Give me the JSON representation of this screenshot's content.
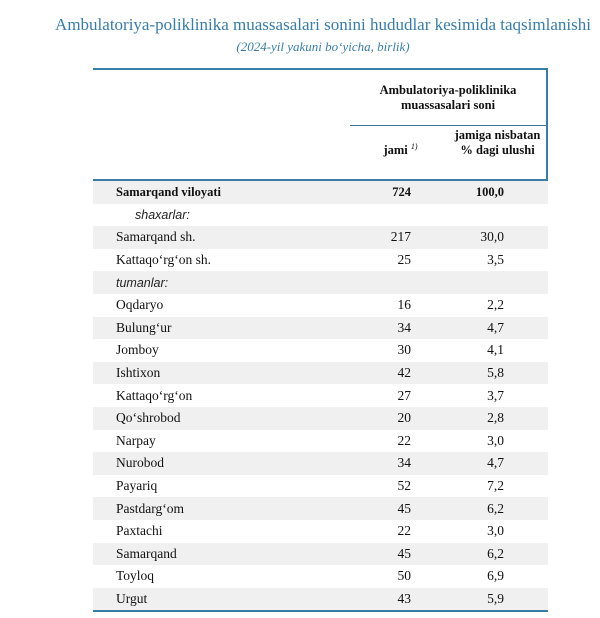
{
  "title": "Ambulatoriya-poliklinika muassasalari sonini hududlar kesimida taqsimlanishi",
  "subtitle": "(2024-yil yakuni bo‘yicha, birlik)",
  "header": {
    "group": "Ambulatoriya-poliklinika muassasalari soni",
    "col_total": "jami",
    "col_total_note": "1)",
    "col_share": "jamiga nisbatan % dagi ulushi"
  },
  "rows": [
    {
      "label": "Samarqand viloyati",
      "total": "724",
      "share": "100,0"
    },
    {
      "label": "shaxarlar:",
      "total": "",
      "share": ""
    },
    {
      "label": "Samarqand sh.",
      "total": "217",
      "share": "30,0"
    },
    {
      "label": "Kattaqo‘rg‘on sh.",
      "total": "25",
      "share": "3,5"
    },
    {
      "label": "tumanlar:",
      "total": "",
      "share": ""
    },
    {
      "label": "Oqdaryo",
      "total": "16",
      "share": "2,2"
    },
    {
      "label": "Bulung‘ur",
      "total": "34",
      "share": "4,7"
    },
    {
      "label": "Jomboy",
      "total": "30",
      "share": "4,1"
    },
    {
      "label": "Ishtixon",
      "total": "42",
      "share": "5,8"
    },
    {
      "label": "Kattaqo‘rg‘on",
      "total": "27",
      "share": "3,7"
    },
    {
      "label": "Qo‘shrobod",
      "total": "20",
      "share": "2,8"
    },
    {
      "label": "Narpay",
      "total": "22",
      "share": "3,0"
    },
    {
      "label": "Nurobod",
      "total": "34",
      "share": "4,7"
    },
    {
      "label": "Payariq",
      "total": "52",
      "share": "7,2"
    },
    {
      "label": "Pastdarg‘om",
      "total": "45",
      "share": "6,2"
    },
    {
      "label": "Paxtachi",
      "total": "22",
      "share": "3,0"
    },
    {
      "label": "Samarqand",
      "total": "45",
      "share": "6,2"
    },
    {
      "label": "Toyloq",
      "total": "50",
      "share": "6,9"
    },
    {
      "label": "Urgut",
      "total": "43",
      "share": "5,9"
    }
  ]
}
